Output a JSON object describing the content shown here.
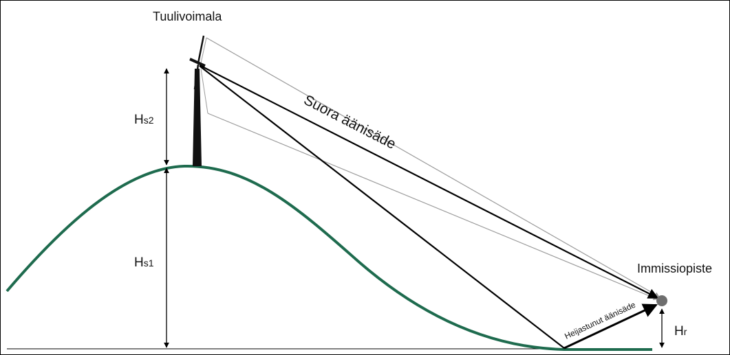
{
  "labels": {
    "turbine": "Tuulivoimala",
    "direct_ray": "Suora äänisäde",
    "receiver": "Immissiopiste",
    "reflected_ray": "Heijastunut äänisäde",
    "hs2_main": "H",
    "hs2_sub": "s2",
    "hs1_main": "H",
    "hs1_sub": "s1",
    "hr_main": "H",
    "hr_sub": "r"
  },
  "colors": {
    "terrain": "#1e6b4e",
    "ray": "#000000",
    "faint_ray": "#9a9a9a",
    "receiver": "#6e6e6e"
  }
}
